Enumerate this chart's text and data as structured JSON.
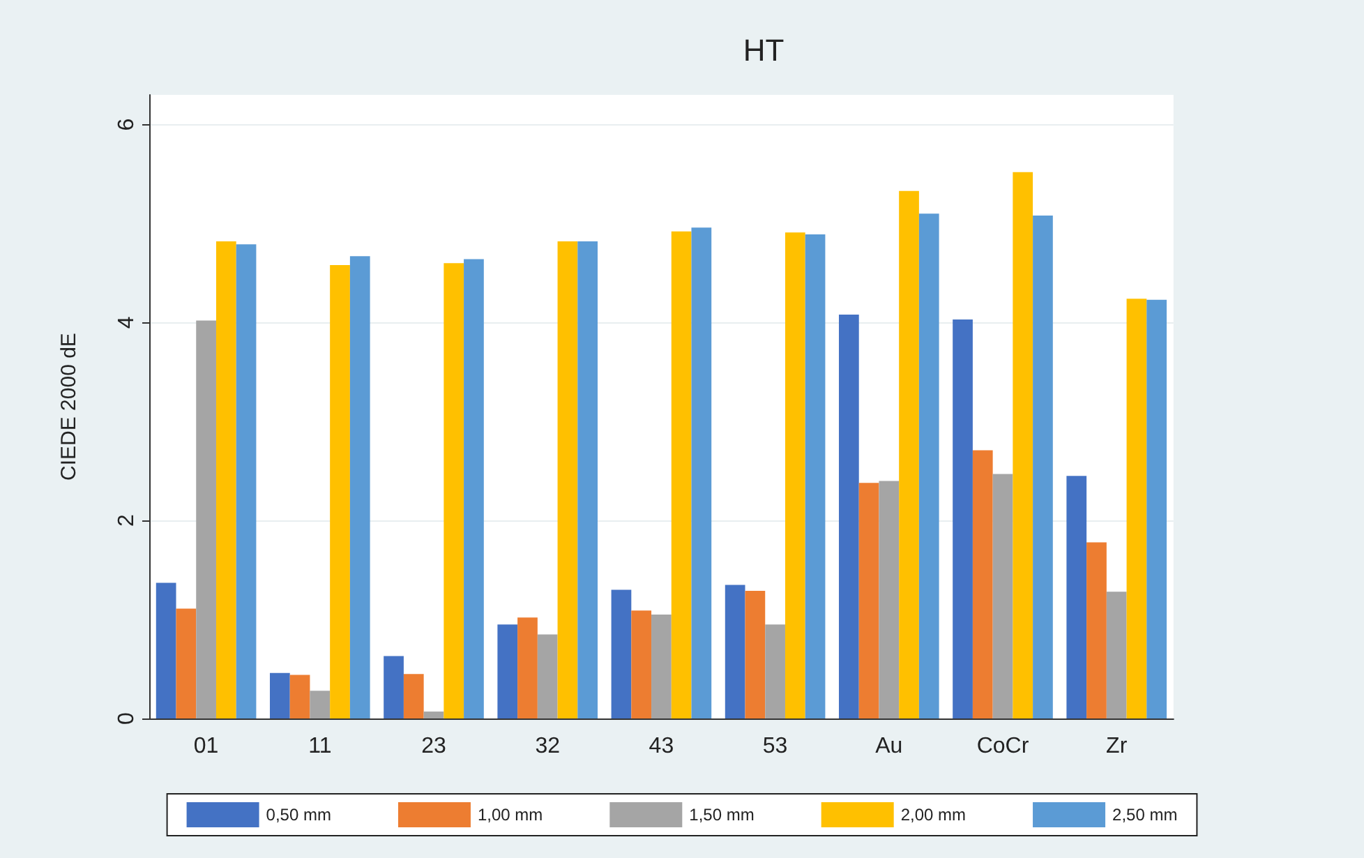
{
  "chart_data": {
    "type": "bar",
    "title": "HT",
    "ylabel": "CIEDE 2000 dE",
    "categories": [
      "01",
      "11",
      "23",
      "32",
      "43",
      "53",
      "Au",
      "CoCr",
      "Zr"
    ],
    "series": [
      {
        "name": "0,50 mm",
        "color": "#4472c4",
        "values": [
          1.37,
          0.46,
          0.63,
          0.95,
          1.3,
          1.35,
          4.08,
          4.03,
          2.45
        ]
      },
      {
        "name": "1,00 mm",
        "color": "#ed7d31",
        "values": [
          1.11,
          0.44,
          0.45,
          1.02,
          1.09,
          1.29,
          2.38,
          2.71,
          1.78
        ]
      },
      {
        "name": "1,50 mm",
        "color": "#a5a5a5",
        "values": [
          4.02,
          0.28,
          0.07,
          0.85,
          1.05,
          0.95,
          2.4,
          2.47,
          1.28
        ]
      },
      {
        "name": "2,00 mm",
        "color": "#ffc000",
        "values": [
          4.82,
          4.58,
          4.6,
          4.82,
          4.92,
          4.91,
          5.33,
          5.52,
          4.24
        ]
      },
      {
        "name": "2,50 mm",
        "color": "#5b9bd5",
        "values": [
          4.79,
          4.67,
          4.64,
          4.82,
          4.96,
          4.89,
          5.1,
          5.08,
          4.23
        ]
      }
    ],
    "ylim": [
      0,
      6.3
    ],
    "yticks": [
      0,
      2,
      4,
      6
    ],
    "grid": "y",
    "legend": "bottom"
  }
}
